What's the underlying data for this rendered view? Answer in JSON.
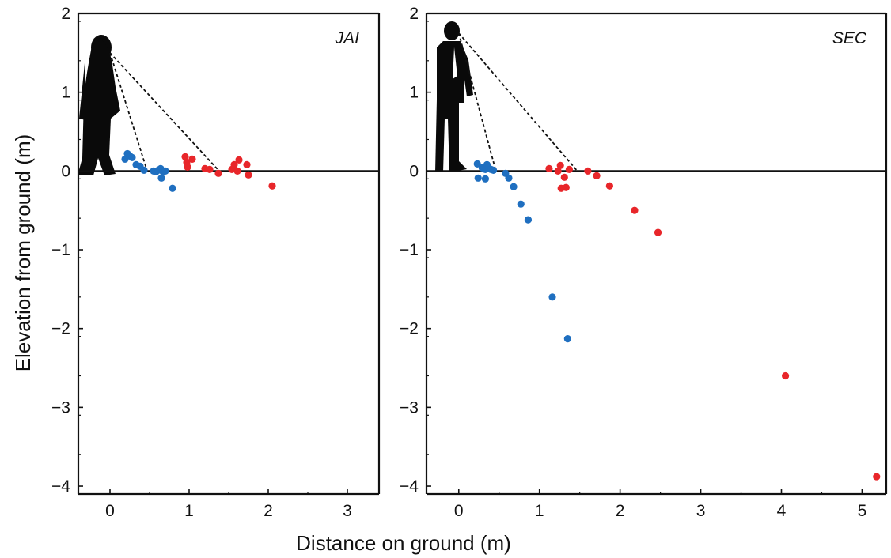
{
  "figure": {
    "ylabel": "Elevation from ground (m)",
    "xlabel": "Distance on ground (m)"
  },
  "colors": {
    "blue": "#1f6fc0",
    "red": "#e8262a",
    "axis": "#111111",
    "silhouette": "#0a0a0a"
  },
  "icons": {
    "person_left": "woman-silhouette-icon",
    "person_right": "man-in-suit-silhouette-icon"
  },
  "chart_data": [
    {
      "type": "scatter",
      "label": "JAI",
      "xlim": [
        -0.4,
        3.4
      ],
      "ylim": [
        -4.1,
        2.0
      ],
      "xticks": [
        0,
        1,
        2,
        3
      ],
      "xtick_labels": [
        "0",
        "1",
        "2",
        "3"
      ],
      "yticks": [
        2,
        1,
        0,
        -1,
        -2,
        -3,
        -4
      ],
      "ytick_labels": [
        "2",
        "1",
        "0",
        "−1",
        "−2",
        "−3",
        "−4"
      ],
      "grid": false,
      "eye_point": [
        0.0,
        1.5
      ],
      "sight_lines_to": [
        [
          0.47,
          0.0
        ],
        [
          1.38,
          0.0
        ]
      ],
      "series": [
        {
          "color": "blue",
          "points": [
            [
              0.19,
              0.15
            ],
            [
              0.22,
              0.22
            ],
            [
              0.25,
              0.19
            ],
            [
              0.28,
              0.17
            ],
            [
              0.33,
              0.08
            ],
            [
              0.38,
              0.06
            ],
            [
              0.43,
              0.01
            ],
            [
              0.55,
              0.0
            ],
            [
              0.58,
              -0.01
            ],
            [
              0.61,
              0.01
            ],
            [
              0.64,
              0.03
            ],
            [
              0.67,
              -0.01
            ],
            [
              0.7,
              0.0
            ],
            [
              0.65,
              -0.09
            ],
            [
              0.79,
              -0.22
            ]
          ]
        },
        {
          "color": "red",
          "points": [
            [
              0.95,
              0.18
            ],
            [
              0.97,
              0.11
            ],
            [
              0.98,
              0.05
            ],
            [
              1.04,
              0.15
            ],
            [
              1.2,
              0.03
            ],
            [
              1.26,
              0.02
            ],
            [
              1.37,
              -0.03
            ],
            [
              1.54,
              0.02
            ],
            [
              1.57,
              0.08
            ],
            [
              1.61,
              0.0
            ],
            [
              1.63,
              0.14
            ],
            [
              1.73,
              0.08
            ],
            [
              1.75,
              -0.05
            ],
            [
              2.05,
              -0.19
            ]
          ]
        }
      ]
    },
    {
      "type": "scatter",
      "label": "SEC",
      "xlim": [
        -0.4,
        5.3
      ],
      "ylim": [
        -4.1,
        2.0
      ],
      "xticks": [
        0,
        1,
        2,
        3,
        4,
        5
      ],
      "xtick_labels": [
        "0",
        "1",
        "2",
        "3",
        "4",
        "5"
      ],
      "yticks": [
        2,
        1,
        0,
        -1,
        -2,
        -3,
        -4
      ],
      "ytick_labels": [
        "2",
        "1",
        "0",
        "−1",
        "−2",
        "−3",
        "−4"
      ],
      "grid": false,
      "eye_point": [
        0.0,
        1.75
      ],
      "sight_lines_to": [
        [
          0.46,
          0.0
        ],
        [
          1.47,
          0.0
        ]
      ],
      "series": [
        {
          "color": "blue",
          "points": [
            [
              0.23,
              0.09
            ],
            [
              0.29,
              0.04
            ],
            [
              0.33,
              0.02
            ],
            [
              0.35,
              0.08
            ],
            [
              0.37,
              0.04
            ],
            [
              0.4,
              0.02
            ],
            [
              0.43,
              0.01
            ],
            [
              0.24,
              -0.09
            ],
            [
              0.33,
              -0.1
            ],
            [
              0.58,
              -0.03
            ],
            [
              0.62,
              -0.09
            ],
            [
              0.68,
              -0.2
            ],
            [
              0.77,
              -0.42
            ],
            [
              0.86,
              -0.62
            ],
            [
              1.16,
              -1.6
            ],
            [
              1.35,
              -2.13
            ]
          ]
        },
        {
          "color": "red",
          "points": [
            [
              1.12,
              0.03
            ],
            [
              1.23,
              0.0
            ],
            [
              1.26,
              0.07
            ],
            [
              1.27,
              -0.22
            ],
            [
              1.31,
              -0.08
            ],
            [
              1.33,
              -0.21
            ],
            [
              1.37,
              0.02
            ],
            [
              1.6,
              0.0
            ],
            [
              1.71,
              -0.06
            ],
            [
              1.87,
              -0.19
            ],
            [
              2.18,
              -0.5
            ],
            [
              2.47,
              -0.78
            ],
            [
              4.05,
              -2.6
            ],
            [
              5.18,
              -3.88
            ]
          ]
        }
      ]
    }
  ]
}
